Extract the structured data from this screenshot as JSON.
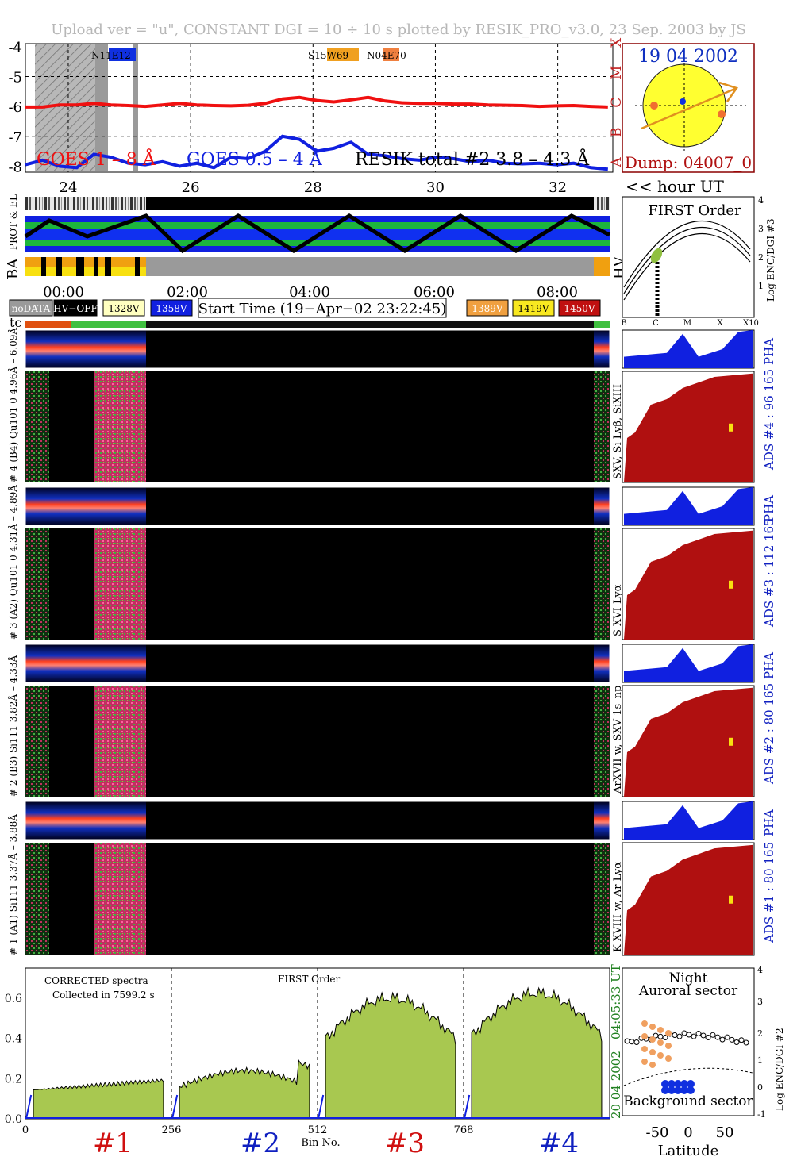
{
  "header": {
    "upload_line": "Upload ver = \"u\", CONSTANT  DGI =  10 ÷  10 s        plotted by RESIK_PRO_v3.0, 23 Sep. 2003 by JS"
  },
  "goes": {
    "y_ticks": [
      "-4",
      "-5",
      "-6",
      "-7",
      "-8"
    ],
    "class_labels": [
      "X",
      "M",
      "C",
      "B",
      "A"
    ],
    "x_ticks": [
      "24",
      "26",
      "28",
      "30",
      "32"
    ],
    "hour_label": "<< hour UT",
    "label_goes_long": "GOES 1 – 8 Å",
    "label_goes_short": "GOES 0.5 – 4 Å",
    "label_resik": "RESIK total #2 3.8 – 4.3 Å",
    "flares": [
      "N11E12",
      "S15W69",
      "N04E70"
    ],
    "long_channel": [
      -6.02,
      -6.02,
      -5.95,
      -5.95,
      -5.9,
      -5.95,
      -5.97,
      -6.0,
      -5.95,
      -5.9,
      -5.95,
      -5.97,
      -5.98,
      -5.96,
      -5.9,
      -5.75,
      -5.7,
      -5.8,
      -5.85,
      -5.78,
      -5.7,
      -5.82,
      -5.88,
      -5.9,
      -5.9,
      -5.92,
      -5.92,
      -5.95,
      -5.96,
      -5.97,
      -6.0,
      -5.98,
      -5.97,
      -6.0,
      -6.02
    ],
    "short_channel": [
      -7.95,
      -7.8,
      -8.0,
      -8.05,
      -7.6,
      -7.7,
      -7.9,
      -7.95,
      -7.85,
      -8.0,
      -7.9,
      -8.05,
      -7.7,
      -7.75,
      -7.5,
      -7.0,
      -7.1,
      -7.5,
      -7.4,
      -7.2,
      -7.6,
      -7.65,
      -7.75,
      -7.8,
      -7.7,
      -7.75,
      -7.85,
      -7.8,
      -7.9,
      -7.92,
      -7.9,
      -7.95,
      -7.9,
      -8.05,
      -8.1
    ]
  },
  "sun": {
    "date": "19 04 2002",
    "dump": "Dump: 04007_0"
  },
  "status_strip": {
    "row_labels": [
      "PROT & EL",
      "BA"
    ],
    "hv_label": "HV",
    "time_ticks": [
      "00:00",
      "02:00",
      "04:00",
      "06:00",
      "08:00"
    ]
  },
  "legend": {
    "nodata": "noDATA",
    "hvoff": "HV−OFF",
    "v1328": "1328V",
    "v1358": "1358V",
    "start_time": "Start Time (19−Apr−02 23:22:45)",
    "v1389": "1389V",
    "v1419": "1419V",
    "v1450": "1450V",
    "tc": "tc"
  },
  "first_order": {
    "title": "FIRST Order",
    "ylabel": "Log ENC/DGI #3",
    "y_ticks": [
      "1",
      "2",
      "3",
      "4"
    ],
    "x_ticks": [
      "B",
      "C",
      "M",
      "X",
      "X10"
    ]
  },
  "channels": [
    {
      "pha_label": "# 4 (B4) Qu101 0 4.96Å – 6.09Å",
      "lines": "SXV, Si Lyβ, SiXIII",
      "ads": "ADS #4 :   96 165"
    },
    {
      "pha_label": "# 3 (A2) Qu101 0  4.31Å – 4.89Å",
      "lines": "S XVI Lyα",
      "ads": "ADS #3 :   112 165"
    },
    {
      "pha_label": "# 2 (B3) Si111  3.82Å – 4.33Å",
      "lines": "ArXVII w, SXV 1s–np",
      "ads": "ADS #2 :   80 165"
    },
    {
      "pha_label": "# 1 (A1) Si111  3.37Å – 3.88Å",
      "lines": "K XVIII w, Ar Lyα",
      "ads": "ADS #1 :   80 165"
    }
  ],
  "pha_tag": "PHA",
  "spectra": {
    "title_left": "CORRECTED spectra",
    "collected": "Collected in  7599.2 s",
    "title_mid": "FIRST Order",
    "x_ticks": [
      "0",
      "256",
      "512",
      "768"
    ],
    "xlabel": "Bin No.",
    "y_ticks": [
      "0.0",
      "0.2",
      "0.4",
      "0.6"
    ],
    "date_vertical": "20 04 2002",
    "time_vertical": "04:05:33 UT",
    "channel_tags": [
      "#1",
      "#2",
      "#3",
      "#4"
    ]
  },
  "latitude": {
    "night": "Night",
    "auroral": "Auroral sector",
    "background": "Background sector",
    "x_ticks": [
      "-50",
      "0",
      "50"
    ],
    "xlabel": "Latitude",
    "ylabel": "Log ENC/DGI #2",
    "y_ticks": [
      "-1",
      "0",
      "1",
      "2",
      "3",
      "4"
    ]
  },
  "chart_data": [
    {
      "type": "line",
      "title": "",
      "xlabel": "hour UT",
      "ylabel": "",
      "ylim": [
        -8.2,
        -3.9
      ],
      "xlim": [
        23.3,
        32.9
      ],
      "series": [
        {
          "name": "GOES 1 – 8 Å",
          "x_start": 23.3,
          "x_step": 0.28,
          "values_ref": "goes.long_channel"
        },
        {
          "name": "GOES 0.5 – 4 Å",
          "x_start": 23.3,
          "x_step": 0.28,
          "values_ref": "goes.short_channel"
        }
      ]
    },
    {
      "type": "area",
      "title": "CORRECTED spectra",
      "xlabel": "Bin No.",
      "ylabel": "",
      "xlim": [
        0,
        1024
      ],
      "ylim": [
        0,
        0.75
      ],
      "series": [
        {
          "name": "#1",
          "x": [
            0,
            256
          ],
          "mean_level": 0.16
        },
        {
          "name": "#2",
          "x": [
            256,
            512
          ],
          "mean_level": 0.22
        },
        {
          "name": "#3",
          "x": [
            512,
            768
          ],
          "mean_level": 0.5
        },
        {
          "name": "#4",
          "x": [
            768,
            1024
          ],
          "mean_level": 0.52
        }
      ]
    }
  ]
}
